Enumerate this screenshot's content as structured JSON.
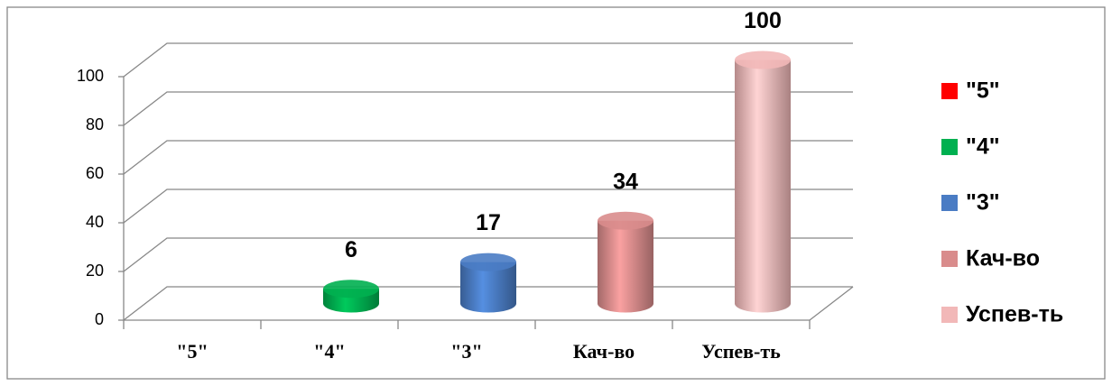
{
  "chart_data": {
    "type": "cylinder",
    "categories": [
      "\"5\"",
      "\"4\"",
      "\"3\"",
      "Кач-во",
      "Успев-ть"
    ],
    "values": [
      0,
      6,
      17,
      34,
      100
    ],
    "value_labels": [
      null,
      "6",
      "17",
      "34",
      "100"
    ],
    "colors": [
      "#ff0000",
      "#00b050",
      "#4a7cc4",
      "#d98c8c",
      "#f2b8b8"
    ],
    "ylim": [
      0,
      100
    ],
    "yticks": [
      0,
      20,
      40,
      60,
      80,
      100
    ],
    "grid": true,
    "legend": "right"
  }
}
